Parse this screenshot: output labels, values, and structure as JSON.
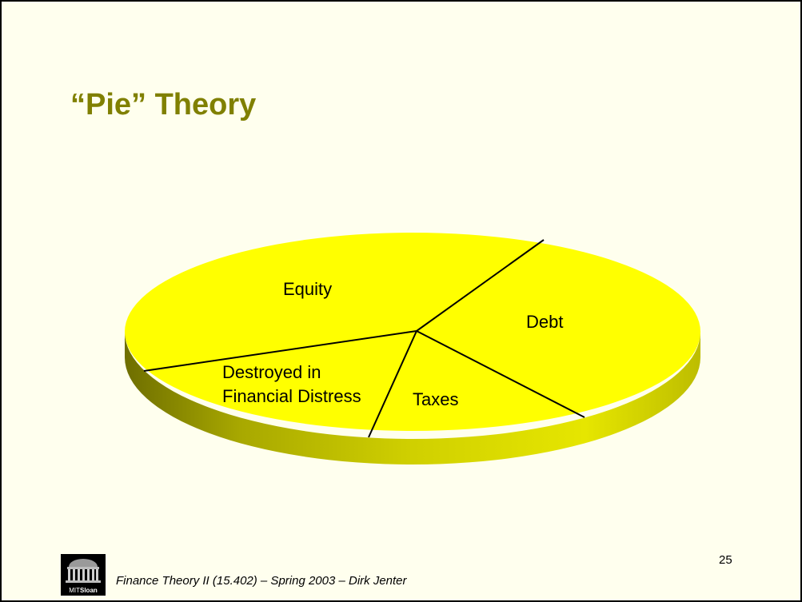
{
  "slide": {
    "title": "“Pie” Theory",
    "page_number": "25",
    "footer": "Finance Theory II (15.402) – Spring 2003 – Dirk Jenter",
    "logo": {
      "prefix": "MIT",
      "name": "Sloan"
    }
  },
  "diagram": {
    "type": "pie",
    "slices": [
      {
        "label": "Equity"
      },
      {
        "label": "Debt"
      },
      {
        "label": "Taxes"
      },
      {
        "label_line1": "Destroyed in",
        "label_line2": "Financial Distress"
      }
    ]
  },
  "colors": {
    "background": "#ffffee",
    "title": "#808000",
    "pie_top": "#ffff00",
    "pie_side_dark": "#7a7a00"
  }
}
